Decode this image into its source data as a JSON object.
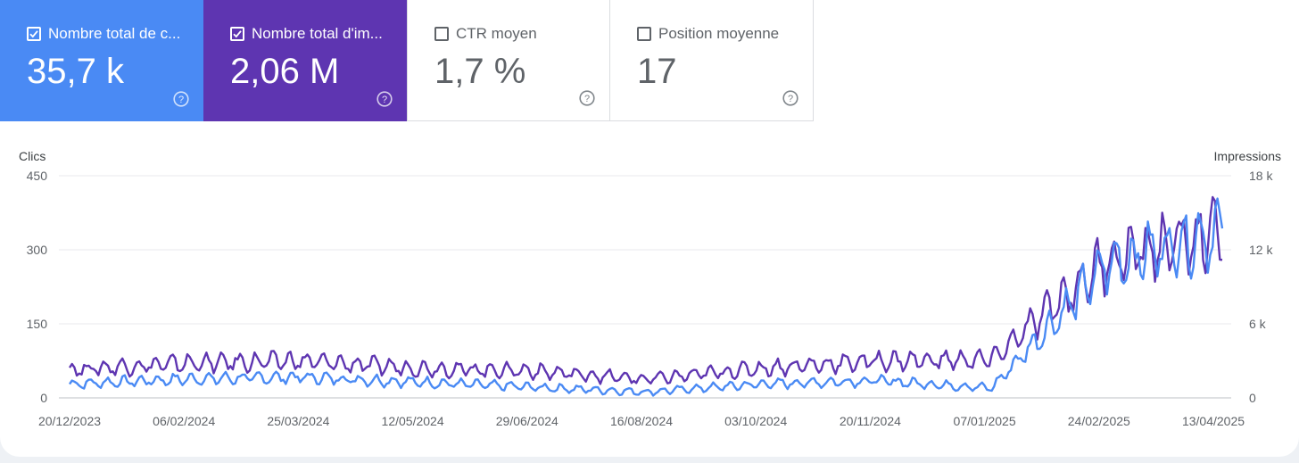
{
  "cards": [
    {
      "label": "Nombre total de c...",
      "value": "35,7 k",
      "checked": true,
      "color": "#4a8af4"
    },
    {
      "label": "Nombre total d'im...",
      "value": "2,06 M",
      "checked": true,
      "color": "#5e35b1"
    },
    {
      "label": "CTR moyen",
      "value": "1,7 %",
      "checked": false
    },
    {
      "label": "Position moyenne",
      "value": "17",
      "checked": false
    }
  ],
  "chart_data": {
    "type": "line",
    "left_axis_title": "Clics",
    "right_axis_title": "Impressions",
    "left_ticks": [
      "450",
      "300",
      "150",
      "0"
    ],
    "right_ticks": [
      "18 k",
      "12 k",
      "6 k",
      "0"
    ],
    "x_tick_labels": [
      "20/12/2023",
      "06/02/2024",
      "25/03/2024",
      "12/05/2024",
      "29/06/2024",
      "16/08/2024",
      "03/10/2024",
      "20/11/2024",
      "07/01/2025",
      "24/02/2025",
      "13/04/2025"
    ],
    "ylim_left": [
      0,
      450
    ],
    "ylim_right": [
      0,
      18000
    ],
    "grid": true,
    "series": [
      {
        "name": "Nombre total de c...",
        "axis": "left",
        "color": "#4a8af4",
        "x": [
          "20/12/2023",
          "06/02/2024",
          "25/03/2024",
          "12/05/2024",
          "29/06/2024",
          "16/08/2024",
          "03/10/2024",
          "20/11/2024",
          "07/01/2025",
          "24/02/2025",
          "13/04/2025"
        ],
        "values": [
          28,
          38,
          42,
          32,
          22,
          12,
          28,
          35,
          20,
          270,
          340
        ]
      },
      {
        "name": "Nombre total d'im...",
        "axis": "right",
        "color": "#5e35b1",
        "x": [
          "20/12/2023",
          "06/02/2024",
          "25/03/2024",
          "12/05/2024",
          "29/06/2024",
          "16/08/2024",
          "03/10/2024",
          "20/11/2024",
          "07/01/2025",
          "24/02/2025",
          "13/04/2025"
        ],
        "values": [
          2300,
          2800,
          3000,
          2400,
          2200,
          1500,
          2400,
          3000,
          3100,
          11200,
          13500
        ]
      }
    ]
  }
}
